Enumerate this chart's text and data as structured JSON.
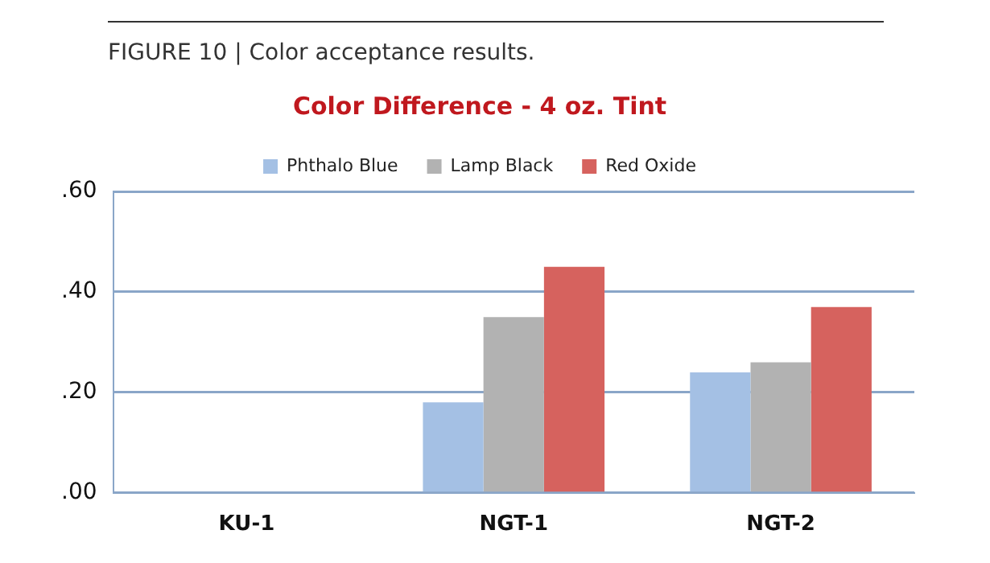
{
  "chart_data": {
    "type": "bar",
    "title": "Color Difference - 4 oz. Tint",
    "annotations": [
      "FIGURE 10 | Color acceptance results."
    ],
    "categories": [
      "KU-1",
      "NGT-1",
      "NGT-2"
    ],
    "series": [
      {
        "name": "Phthalo Blue",
        "color": "#a4c0e4",
        "values": [
          0,
          0.18,
          0.24
        ]
      },
      {
        "name": "Lamp Black",
        "color": "#b2b2b2",
        "values": [
          0,
          0.35,
          0.26
        ]
      },
      {
        "name": "Red Oxide",
        "color": "#d6625e",
        "values": [
          0,
          0.45,
          0.37
        ]
      }
    ],
    "ylim": [
      0,
      0.6
    ],
    "yticks": [
      {
        "value": 0,
        "label": ".00"
      },
      {
        "value": 0.2,
        "label": ".20"
      },
      {
        "value": 0.4,
        "label": ".40"
      },
      {
        "value": 0.6,
        "label": ".60"
      }
    ],
    "grid": "y",
    "legend": "top"
  }
}
